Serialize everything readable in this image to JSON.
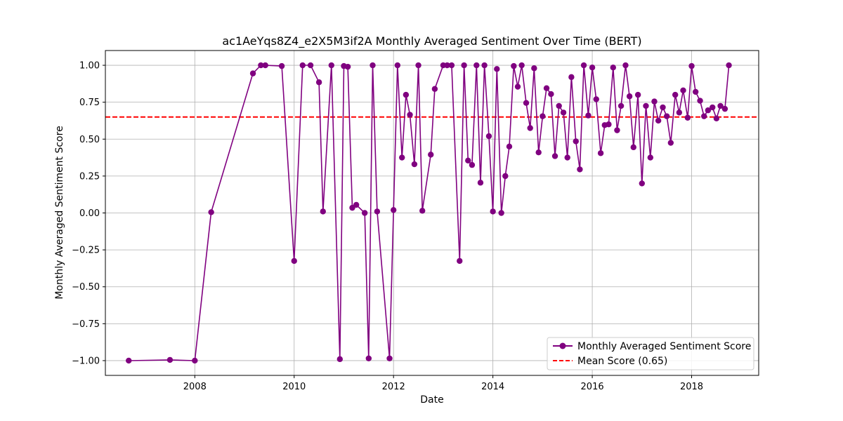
{
  "chart_data": {
    "type": "line",
    "title": "ac1AeYqs8Z4_e2X5M3if2A Monthly Averaged Sentiment Over Time (BERT)",
    "xlabel": "Date",
    "ylabel": "Monthly Averaged Sentiment Score",
    "xlim": [
      2006.2,
      2019.35
    ],
    "ylim": [
      -1.1,
      1.1
    ],
    "xticks": [
      2008,
      2010,
      2012,
      2014,
      2016,
      2018
    ],
    "yticks": [
      -1.0,
      -0.75,
      -0.5,
      -0.25,
      0.0,
      0.25,
      0.5,
      0.75,
      1.0
    ],
    "ytick_labels": [
      "−1.00",
      "−0.75",
      "−0.50",
      "−0.25",
      "0.00",
      "0.25",
      "0.50",
      "0.75",
      "1.00"
    ],
    "grid": true,
    "legend_position": "lower-right",
    "series": [
      {
        "name": "Monthly Averaged Sentiment Score",
        "color": "#800080",
        "marker": "circle",
        "x": [
          2006.67,
          2007.5,
          2008.0,
          2008.33,
          2009.17,
          2009.33,
          2009.42,
          2009.75,
          2010.0,
          2010.17,
          2010.33,
          2010.5,
          2010.58,
          2010.75,
          2010.92,
          2011.0,
          2011.08,
          2011.17,
          2011.25,
          2011.42,
          2011.5,
          2011.58,
          2011.67,
          2011.92,
          2012.0,
          2012.08,
          2012.17,
          2012.25,
          2012.33,
          2012.42,
          2012.5,
          2012.58,
          2012.75,
          2012.83,
          2013.0,
          2013.08,
          2013.17,
          2013.33,
          2013.42,
          2013.5,
          2013.58,
          2013.67,
          2013.75,
          2013.83,
          2013.92,
          2014.0,
          2014.08,
          2014.17,
          2014.25,
          2014.33,
          2014.42,
          2014.5,
          2014.58,
          2014.67,
          2014.75,
          2014.83,
          2014.92,
          2015.0,
          2015.08,
          2015.17,
          2015.25,
          2015.33,
          2015.42,
          2015.5,
          2015.58,
          2015.67,
          2015.75,
          2015.83,
          2015.92,
          2016.0,
          2016.08,
          2016.17,
          2016.25,
          2016.33,
          2016.42,
          2016.5,
          2016.58,
          2016.67,
          2016.75,
          2016.83,
          2016.92,
          2017.0,
          2017.08,
          2017.17,
          2017.25,
          2017.33,
          2017.42,
          2017.5,
          2017.58,
          2017.67,
          2017.75,
          2017.83,
          2017.92,
          2018.0,
          2018.08,
          2018.17,
          2018.25,
          2018.33,
          2018.42,
          2018.5,
          2018.58,
          2018.67,
          2018.75
        ],
        "values": [
          -1.0,
          -0.995,
          -1.0,
          0.005,
          0.945,
          1.0,
          1.0,
          0.995,
          -0.325,
          1.0,
          1.0,
          0.885,
          0.01,
          1.0,
          -0.99,
          0.995,
          0.99,
          0.035,
          0.055,
          0.0,
          -0.985,
          1.0,
          0.01,
          -0.985,
          0.02,
          1.0,
          0.375,
          0.8,
          0.665,
          0.33,
          1.0,
          0.015,
          0.395,
          0.84,
          1.0,
          1.0,
          1.0,
          -0.325,
          1.0,
          0.355,
          0.325,
          1.0,
          0.205,
          1.0,
          0.52,
          0.01,
          0.975,
          0.0,
          0.25,
          0.45,
          0.995,
          0.855,
          1.0,
          0.745,
          0.575,
          0.98,
          0.41,
          0.655,
          0.845,
          0.805,
          0.385,
          0.725,
          0.68,
          0.375,
          0.92,
          0.485,
          0.295,
          1.0,
          0.66,
          0.985,
          0.77,
          0.405,
          0.595,
          0.6,
          0.985,
          0.56,
          0.725,
          1.0,
          0.79,
          0.445,
          0.8,
          0.2,
          0.725,
          0.375,
          0.755,
          0.625,
          0.715,
          0.655,
          0.475,
          0.8,
          0.68,
          0.83,
          0.645,
          0.995,
          0.82,
          0.76,
          0.655,
          0.695,
          0.715,
          0.64,
          0.725,
          0.705,
          1.0
        ]
      },
      {
        "name": "Mean Score (0.65)",
        "color": "#ff0000",
        "style": "dashed",
        "value": 0.65
      }
    ]
  }
}
